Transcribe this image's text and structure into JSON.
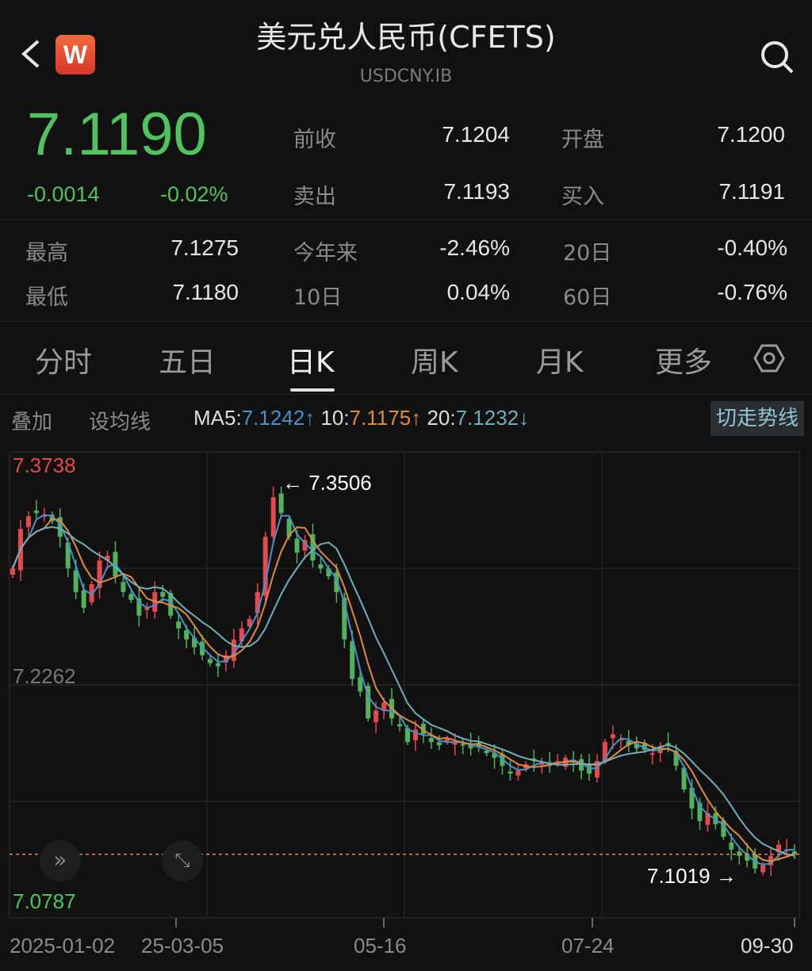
{
  "header": {
    "title": "美元兑人民币(CFETS)",
    "subtitle": "USDCNY.IB",
    "logo_text": "W",
    "back_icon": "chevron-left-icon",
    "search_icon": "search-icon"
  },
  "quote": {
    "price": "7.1190",
    "change": "-0.0014",
    "change_pct": "-0.02%",
    "color": "#4fc35f"
  },
  "stats": [
    {
      "label": "前收",
      "value": "7.1204"
    },
    {
      "label": "开盘",
      "value": "7.1200"
    },
    {
      "label": "卖出",
      "value": "7.1193"
    },
    {
      "label": "买入",
      "value": "7.1191"
    },
    {
      "label": "最高",
      "value": "7.1275"
    },
    {
      "label": "今年来",
      "value": "-2.46%"
    },
    {
      "label": "20日",
      "value": "-0.40%"
    },
    {
      "label": "最低",
      "value": "7.1180"
    },
    {
      "label": "10日",
      "value": "0.04%"
    },
    {
      "label": "60日",
      "value": "-0.76%"
    }
  ],
  "tabs": [
    {
      "label": "分时"
    },
    {
      "label": "五日"
    },
    {
      "label": "日K",
      "active": true
    },
    {
      "label": "周K"
    },
    {
      "label": "月K"
    },
    {
      "label": "更多"
    }
  ],
  "ma_bar": {
    "overlay": "叠加",
    "set_ma": "设均线",
    "ma5_label": "MA5:",
    "ma5": "7.1242↑",
    "ma10_label": "10:",
    "ma10": "7.1175↑",
    "ma20_label": "20:",
    "ma20": "7.1232↓",
    "switch_trend": "切走势线"
  },
  "colors": {
    "up": "#e5484d",
    "down": "#4fb35d",
    "ma5": "#4a90c8",
    "ma10": "#e08a3c",
    "ma20": "#6fb0b8"
  },
  "chart_data": {
    "type": "candlestick",
    "y_labels": {
      "top": "7.3738",
      "mid": "7.2262",
      "bottom": "7.0787"
    },
    "ylim": [
      7.0787,
      7.3738
    ],
    "annotations": {
      "high": "← 7.3506",
      "low": "7.1019 →"
    },
    "x_ticks": [
      "2025-01-02",
      "25-03-05",
      "05-16",
      "07-24",
      "09-30"
    ],
    "last_price_line": 7.119,
    "closes": [
      7.3,
      7.325,
      7.333,
      7.335,
      7.334,
      7.33,
      7.32,
      7.3,
      7.285,
      7.275,
      7.29,
      7.305,
      7.308,
      7.295,
      7.285,
      7.28,
      7.27,
      7.275,
      7.285,
      7.282,
      7.27,
      7.262,
      7.255,
      7.25,
      7.245,
      7.24,
      7.238,
      7.245,
      7.255,
      7.262,
      7.268,
      7.285,
      7.32,
      7.345,
      7.335,
      7.32,
      7.31,
      7.318,
      7.305,
      7.3,
      7.295,
      7.285,
      7.255,
      7.23,
      7.222,
      7.205,
      7.21,
      7.215,
      7.205,
      7.2,
      7.19,
      7.198,
      7.195,
      7.19,
      7.188,
      7.192,
      7.19,
      7.188,
      7.186,
      7.187,
      7.183,
      7.18,
      7.175,
      7.17,
      7.172,
      7.176,
      7.178,
      7.177,
      7.175,
      7.178,
      7.18,
      7.178,
      7.172,
      7.17,
      7.178,
      7.19,
      7.195,
      7.192,
      7.188,
      7.186,
      7.185,
      7.183,
      7.187,
      7.188,
      7.175,
      7.16,
      7.148,
      7.14,
      7.145,
      7.138,
      7.13,
      7.122,
      7.118,
      7.115,
      7.11,
      7.112,
      7.118,
      7.125,
      7.122,
      7.119
    ]
  }
}
